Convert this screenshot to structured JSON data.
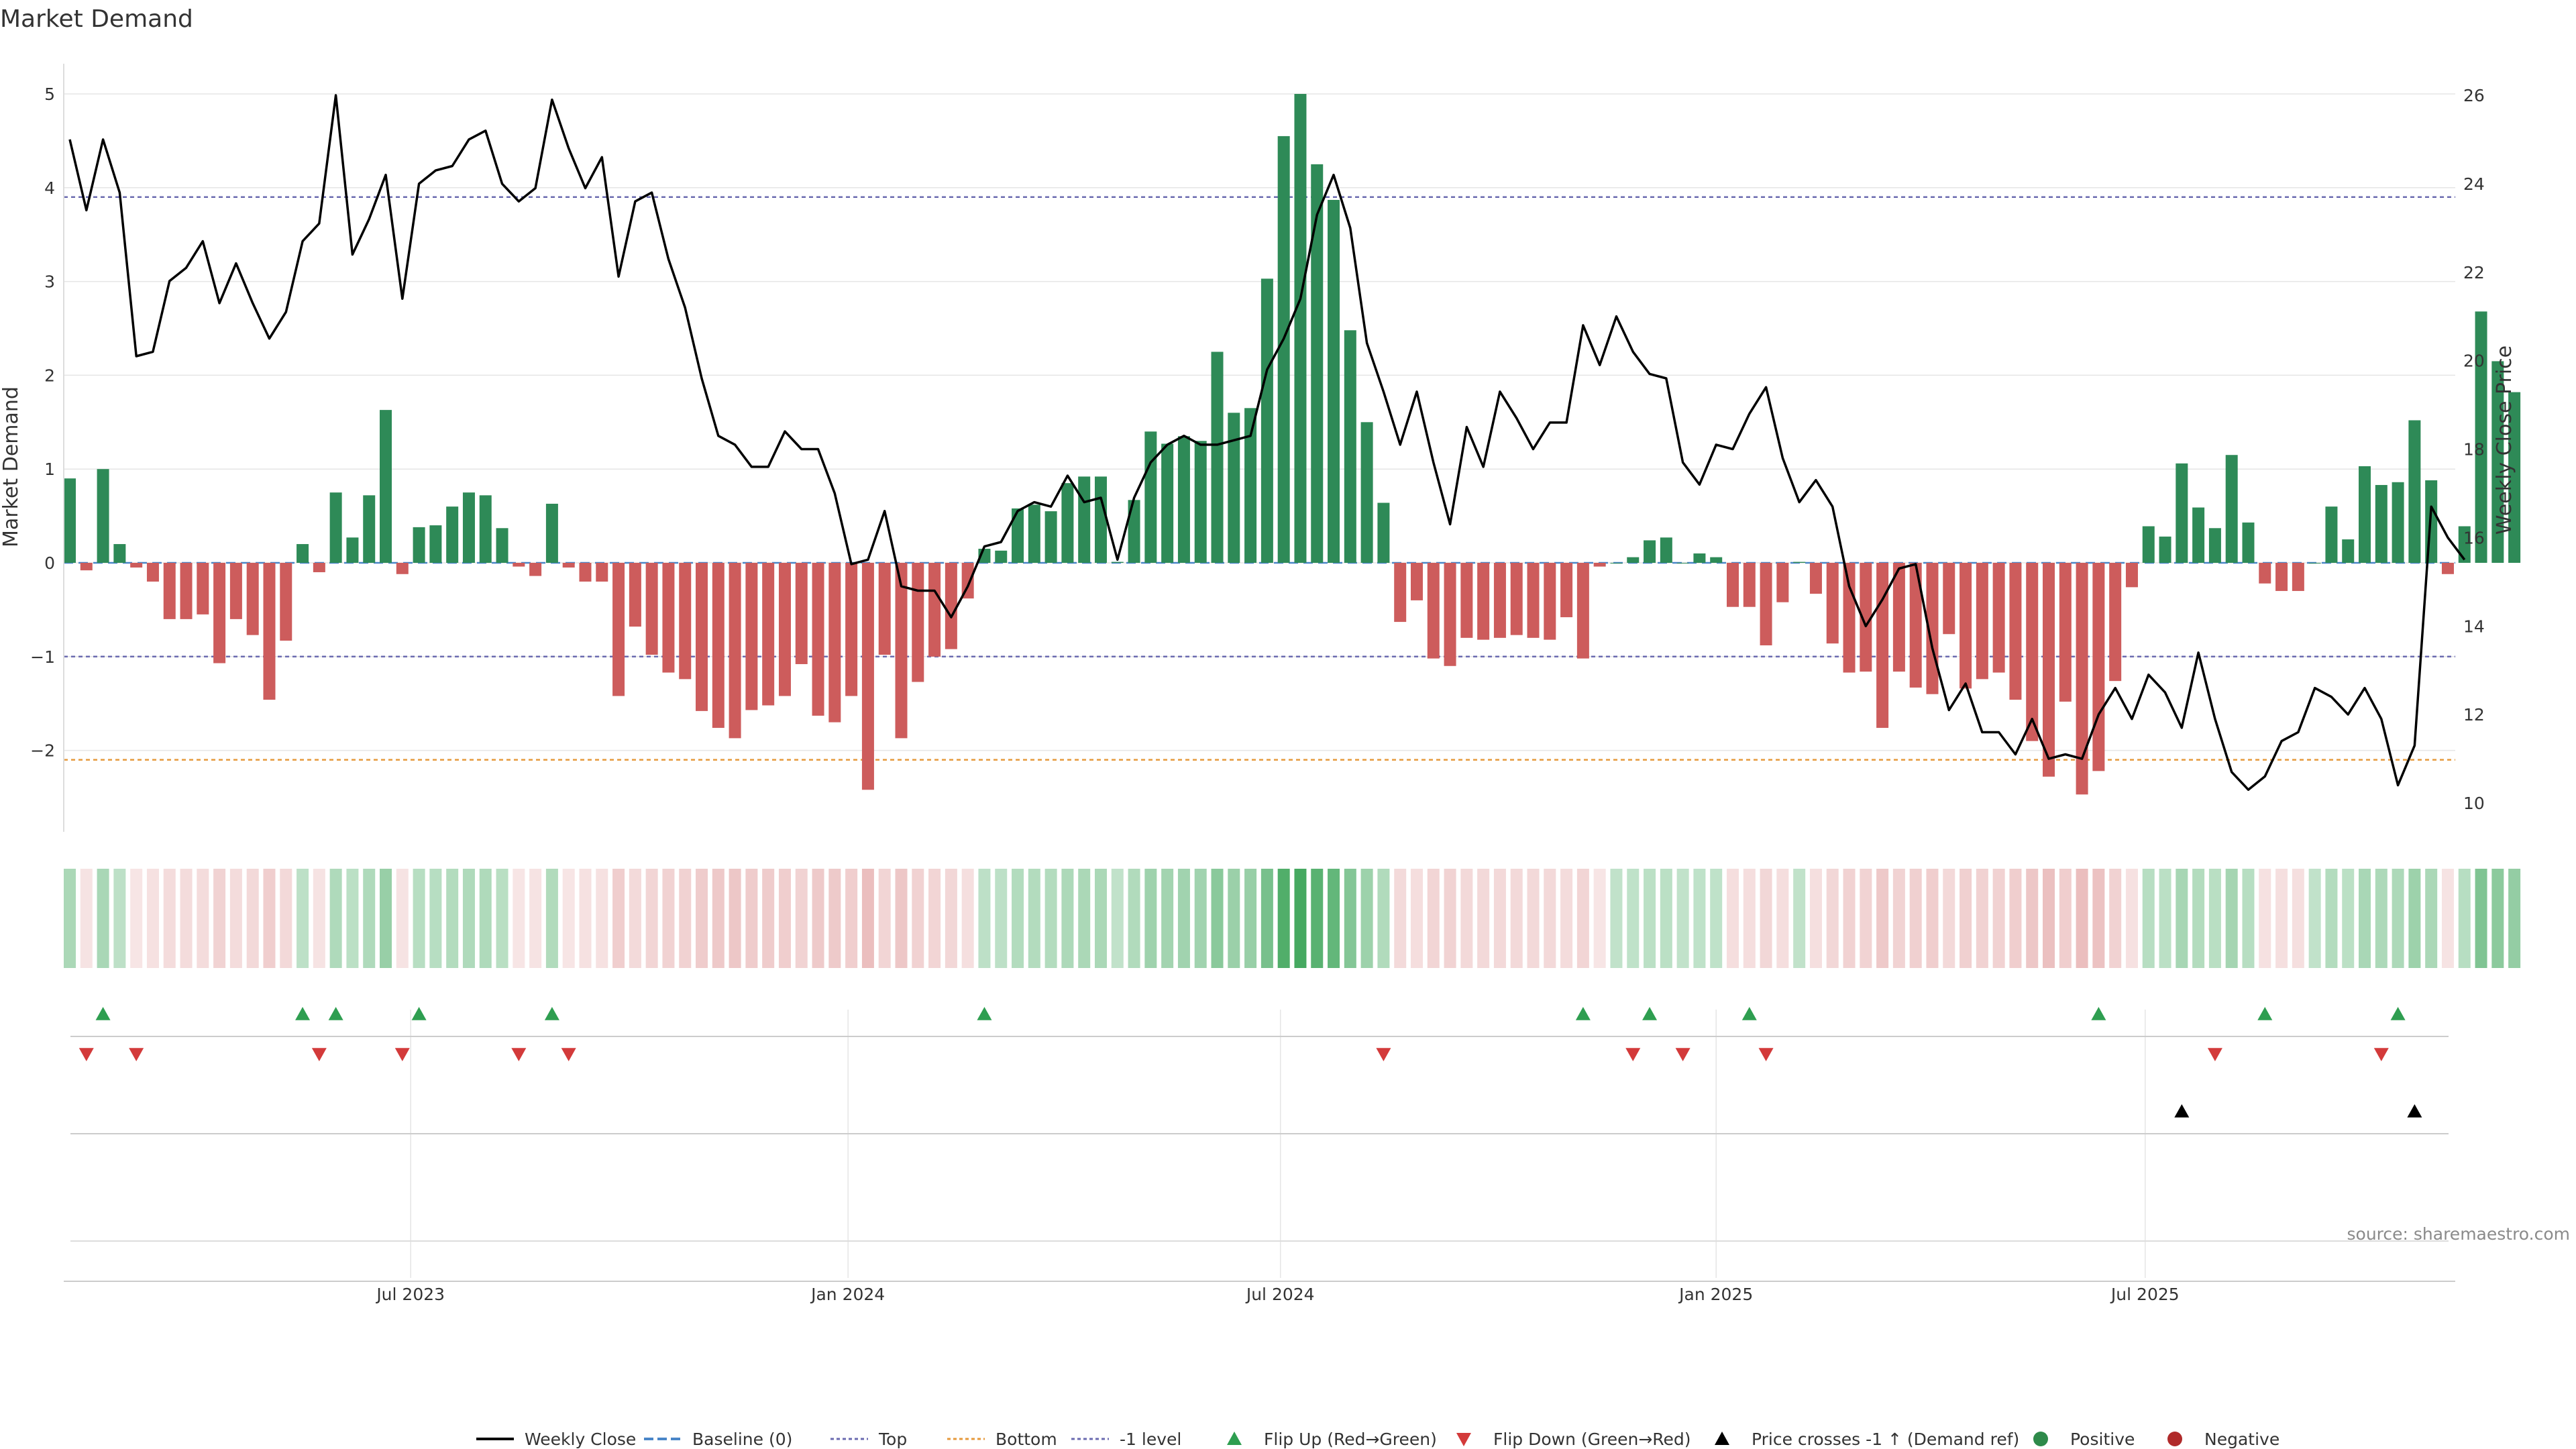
{
  "chart_data": {
    "type": "bar",
    "title": "Market Demand",
    "ylabel": "Market Demand",
    "y2label": "Weekly Close Price",
    "ylim": [
      -2.8,
      5.3
    ],
    "y2lim": [
      9.4,
      26.5
    ],
    "yticks": [
      5,
      4,
      3,
      2,
      1,
      0,
      -1,
      -2
    ],
    "yticklabels": [
      "5",
      "4",
      "3",
      "2",
      "1",
      "0",
      "−1",
      "−2"
    ],
    "y2ticks": [
      26,
      24,
      22,
      20,
      18,
      16,
      14,
      12,
      10
    ],
    "y2ticklabels": [
      "26",
      "24",
      "22",
      "20",
      "18",
      "16",
      "14",
      "12",
      "10"
    ],
    "xticks": [
      20.5,
      46.8,
      72.8,
      99.0,
      124.8
    ],
    "xticklabels": [
      "Jul 2023",
      "Jan 2024",
      "Jul 2024",
      "Jan 2025",
      "Jul 2025"
    ],
    "reference_lines": [
      {
        "name": "Top",
        "value": 3.9,
        "color": "#6b6bb0"
      },
      {
        "name": "-1 level",
        "value": -1,
        "color": "#6b6bb0"
      },
      {
        "name": "Bottom",
        "value": -2.1,
        "color": "#e69a3c"
      }
    ],
    "series": [
      {
        "name": "Market Demand",
        "values": [
          0.9,
          -0.08,
          1.0,
          0.2,
          -0.05,
          -0.2,
          -0.6,
          -0.6,
          -0.55,
          -1.07,
          -0.6,
          -0.77,
          -1.46,
          -0.83,
          0.2,
          -0.1,
          0.75,
          0.27,
          0.72,
          1.63,
          -0.12,
          0.38,
          0.4,
          0.6,
          0.75,
          0.72,
          0.37,
          -0.04,
          -0.14,
          0.63,
          -0.05,
          -0.2,
          -0.2,
          -1.42,
          -0.68,
          -0.98,
          -1.17,
          -1.24,
          -1.58,
          -1.76,
          -1.87,
          -1.57,
          -1.52,
          -1.42,
          -1.08,
          -1.63,
          -1.7,
          -1.42,
          -2.42,
          -0.98,
          -1.87,
          -1.27,
          -1.0,
          -0.92,
          -0.38,
          0.15,
          0.13,
          0.58,
          0.62,
          0.55,
          0.85,
          0.92,
          0.92,
          0.01,
          0.67,
          1.4,
          1.27,
          1.35,
          1.3,
          2.25,
          1.6,
          1.65,
          3.03,
          4.55,
          5.0,
          4.25,
          3.87,
          2.48,
          1.5,
          0.64,
          -0.63,
          -0.4,
          -1.02,
          -1.1,
          -0.8,
          -0.82,
          -0.8,
          -0.77,
          -0.8,
          -0.82,
          -0.58,
          -1.02,
          -0.04,
          0.0,
          0.06,
          0.24,
          0.27,
          0.0,
          0.1,
          0.06,
          -0.47,
          -0.47,
          -0.88,
          -0.42,
          0.01,
          -0.33,
          -0.86,
          -1.17,
          -1.16,
          -1.76,
          -1.16,
          -1.33,
          -1.4,
          -0.76,
          -1.34,
          -1.24,
          -1.17,
          -1.46,
          -1.9,
          -2.28,
          -1.48,
          -2.47,
          -2.22,
          -1.26,
          -0.26,
          0.39,
          0.28,
          1.06,
          0.59,
          0.37,
          1.15,
          0.43,
          -0.22,
          -0.3,
          -0.3,
          0.0,
          0.6,
          0.25,
          1.03,
          0.83,
          0.86,
          1.52,
          0.88,
          -0.12,
          0.39,
          2.68,
          2.15,
          1.82
        ]
      },
      {
        "name": "Weekly Close",
        "values": [
          25.0,
          23.4,
          25.0,
          23.8,
          20.1,
          20.2,
          21.8,
          22.1,
          22.7,
          21.3,
          22.2,
          21.3,
          20.5,
          21.1,
          22.7,
          23.1,
          26.0,
          22.4,
          23.2,
          24.2,
          21.4,
          24.0,
          24.3,
          24.4,
          25.0,
          25.2,
          24.0,
          23.6,
          23.9,
          25.9,
          24.8,
          23.9,
          24.6,
          21.9,
          23.6,
          23.8,
          22.3,
          21.2,
          19.6,
          18.3,
          18.1,
          17.6,
          17.6,
          18.4,
          18.0,
          18.0,
          17.0,
          15.4,
          15.5,
          16.6,
          14.9,
          14.8,
          14.8,
          14.2,
          14.9,
          15.8,
          15.9,
          16.6,
          16.8,
          16.7,
          17.4,
          16.8,
          16.9,
          15.5,
          16.9,
          17.7,
          18.1,
          18.3,
          18.1,
          18.1,
          18.2,
          18.3,
          19.8,
          20.5,
          21.4,
          23.3,
          24.2,
          23.0,
          20.4,
          19.3,
          18.1,
          19.3,
          17.7,
          16.3,
          18.5,
          17.6,
          19.3,
          18.7,
          18.0,
          18.6,
          18.6,
          20.8,
          19.9,
          21.0,
          20.2,
          19.7,
          19.6,
          17.7,
          17.2,
          18.1,
          18.0,
          18.8,
          19.4,
          17.8,
          16.8,
          17.3,
          16.7,
          14.9,
          14.0,
          14.6,
          15.3,
          15.4,
          13.5,
          12.1,
          12.7,
          11.6,
          11.6,
          11.1,
          11.9,
          11.0,
          11.1,
          11.0,
          12.0,
          12.6,
          11.9,
          12.9,
          12.5,
          11.7,
          13.4,
          11.9,
          10.7,
          10.3,
          10.6,
          11.4,
          11.6,
          12.6,
          12.4,
          12.0,
          12.6,
          11.9,
          10.4,
          11.3,
          16.7,
          16.0,
          15.5
        ]
      }
    ],
    "flip_up_weeks": [
      2,
      14,
      16,
      21,
      29,
      55,
      91,
      95,
      101,
      122,
      132,
      140
    ],
    "flip_down_weeks": [
      1,
      4,
      15,
      20,
      27,
      30,
      79,
      94,
      97,
      102,
      129,
      139
    ],
    "price_cross_weeks": [
      127,
      141
    ],
    "legend": [
      {
        "label": "Weekly Close",
        "kind": "line",
        "color": "#000000"
      },
      {
        "label": "Baseline (0)",
        "kind": "dash",
        "color": "#4a86c8"
      },
      {
        "label": "Top",
        "kind": "dot",
        "color": "#6b6bb0"
      },
      {
        "label": "Bottom",
        "kind": "dot",
        "color": "#e69a3c"
      },
      {
        "label": "-1 level",
        "kind": "dot",
        "color": "#6b6bb0"
      },
      {
        "label": "Flip Up (Red→Green)",
        "kind": "tri-up",
        "color": "#2e9e50"
      },
      {
        "label": "Flip Down (Green→Red)",
        "kind": "tri-down",
        "color": "#d33a3a"
      },
      {
        "label": "Price crosses -1 ↑ (Demand ref)",
        "kind": "tri-up",
        "color": "#000000"
      },
      {
        "label": "Positive",
        "kind": "circle",
        "color": "#2e8a4a"
      },
      {
        "label": "Negative",
        "kind": "circle",
        "color": "#b02a2a"
      }
    ],
    "source": "source: sharemaestro.com"
  },
  "colors": {
    "positive_bar": "#2e8a57",
    "negative_bar": "#cd5c5c",
    "price_line": "#000000",
    "baseline": "#4a86c8",
    "grid": "#e5e5e5"
  }
}
